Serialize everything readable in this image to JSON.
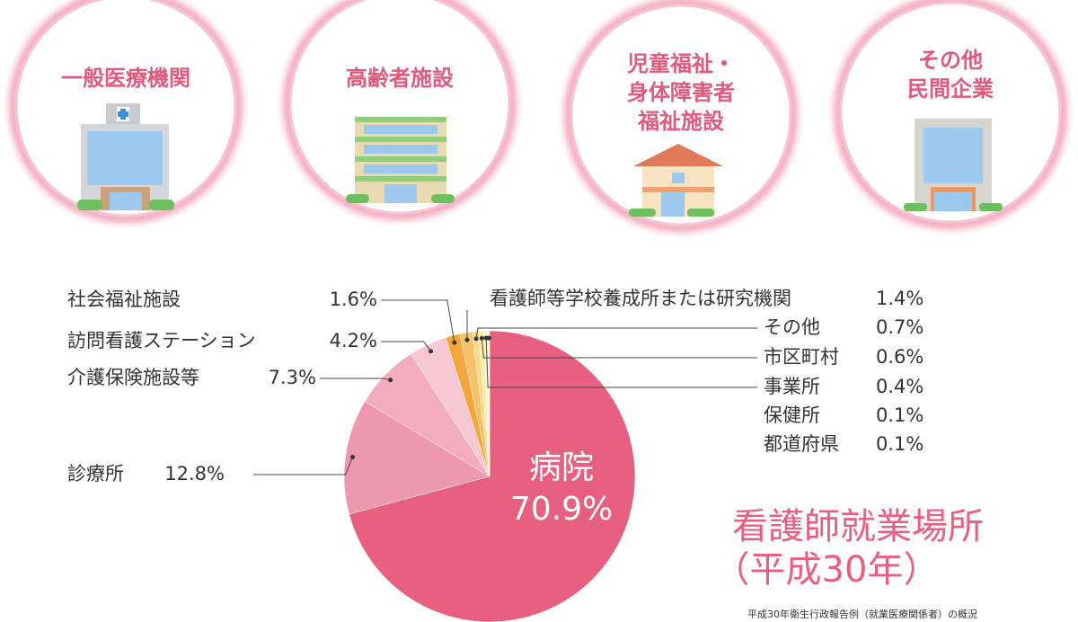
{
  "header": {
    "workplaces": [
      {
        "lines": [
          "一般医療機関"
        ]
      },
      {
        "lines": [
          "高齢者施設"
        ]
      },
      {
        "lines": [
          "児童福祉・",
          "身体障害者",
          "福祉施設"
        ]
      },
      {
        "lines": [
          "その他",
          "民間企業"
        ]
      }
    ]
  },
  "chart_data": {
    "type": "pie",
    "title": "看護師就業場所",
    "subtitle": "（平成30年）",
    "source": "平成30年衛生行政報告例（就業医療関係者）の概況",
    "categories": [
      "病院",
      "診療所",
      "介護保険施設等",
      "訪問看護ステーション",
      "社会福祉施設",
      "看護師等学校養成所または研究機関",
      "その他",
      "市区町村",
      "事業所",
      "保健所",
      "都道府県"
    ],
    "values": [
      70.9,
      12.8,
      7.3,
      4.2,
      1.6,
      1.4,
      0.7,
      0.6,
      0.4,
      0.1,
      0.1
    ],
    "value_labels": [
      "70.9%",
      "12.8%",
      "7.3%",
      "4.2%",
      "1.6%",
      "1.4%",
      "0.7%",
      "0.6%",
      "0.4%",
      "0.1%",
      "0.1%"
    ],
    "colors": [
      "#e8607f",
      "#ee98ad",
      "#f2acbd",
      "#f6c8d3",
      "#f5a53a",
      "#f8c16a",
      "#fbdc86",
      "#fdecaa",
      "#fef3c6",
      "#fff6d6",
      "#fff8e0"
    ]
  }
}
